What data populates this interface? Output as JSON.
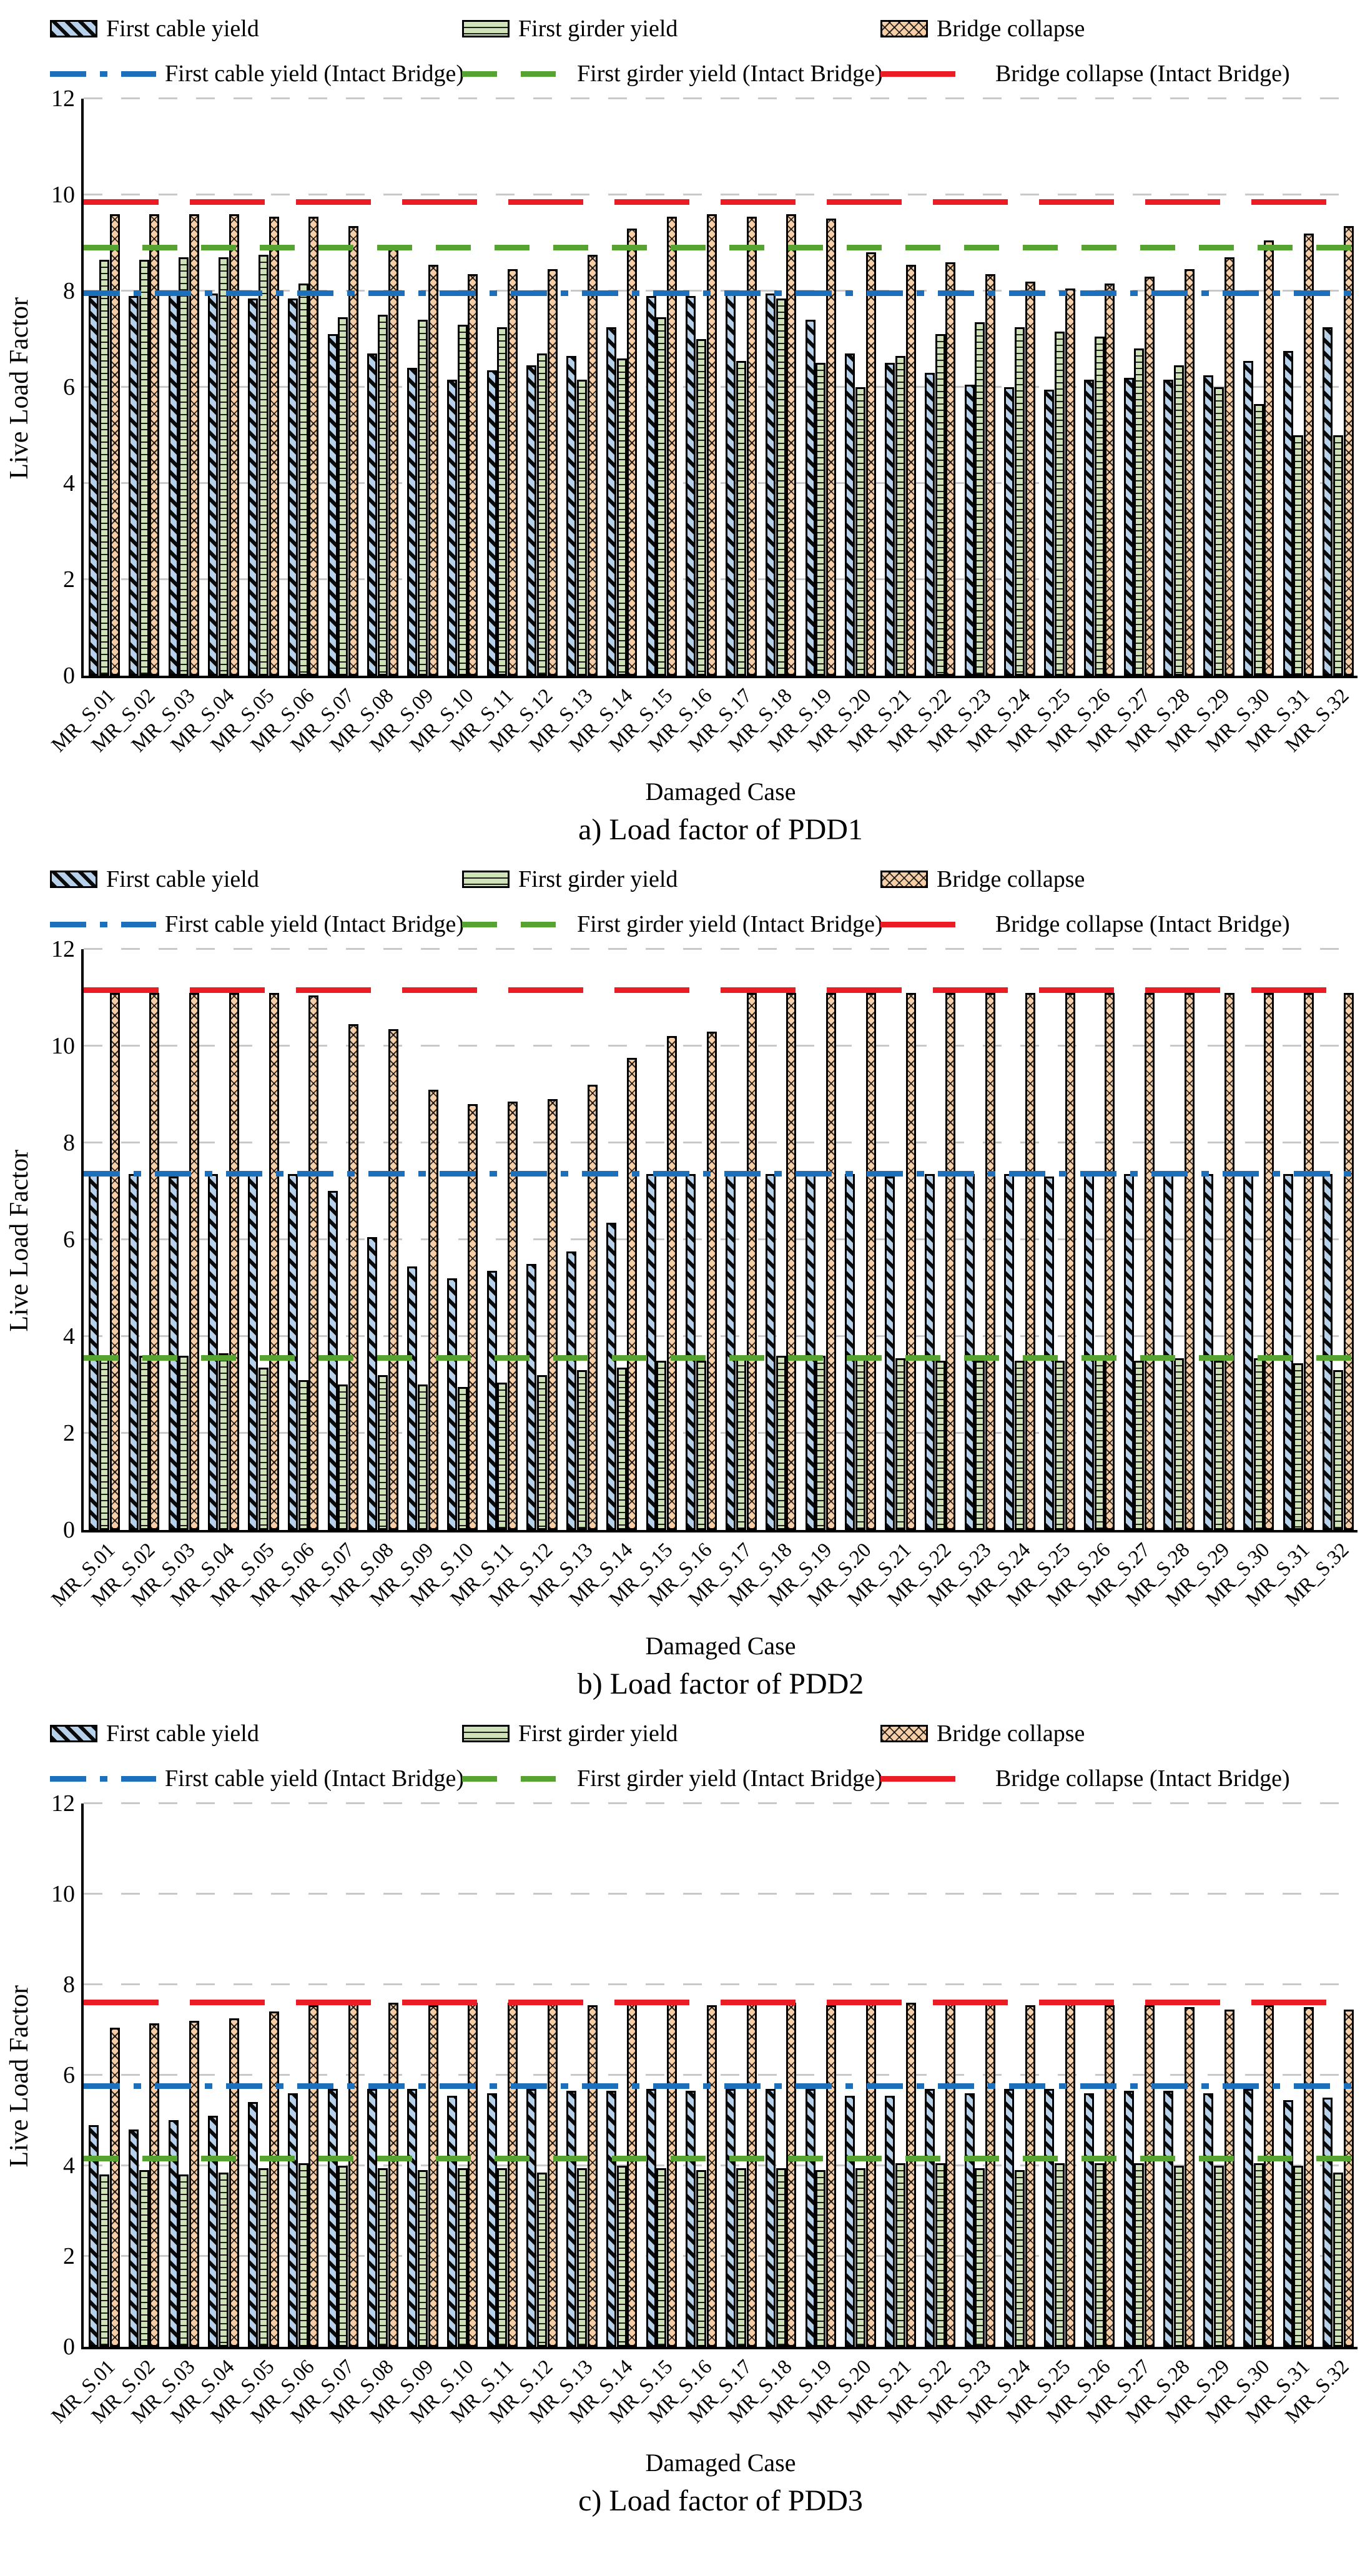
{
  "legend": {
    "bars": [
      {
        "name": "cable",
        "label": "First cable yield"
      },
      {
        "name": "girder",
        "label": "First girder yield"
      },
      {
        "name": "collapse",
        "label": "Bridge collapse"
      }
    ],
    "lines": [
      {
        "name": "cable-intact",
        "label": "First cable yield (Intact Bridge)"
      },
      {
        "name": "girder-intact",
        "label": "First girder yield (Intact Bridge)"
      },
      {
        "name": "collapse-intact",
        "label": "Bridge collapse (Intact Bridge)"
      }
    ]
  },
  "colors": {
    "cable_fill": "#b8d1ea",
    "girder_fill": "#cfe2b8",
    "collapse_fill": "#f6cfa9",
    "cable_intact_line": "#1c6fba",
    "girder_intact_line": "#56a331",
    "collapse_intact_line": "#ec1c24",
    "grid": "#c9c9c9"
  },
  "ylabel": "Live Load Factor",
  "xlabel": "Damaged Case",
  "yticks": [
    0,
    2,
    4,
    6,
    8,
    10,
    12
  ],
  "categories": [
    "MR_S.01",
    "MR_S.02",
    "MR_S.03",
    "MR_S.04",
    "MR_S.05",
    "MR_S.06",
    "MR_S.07",
    "MR_S.08",
    "MR_S.09",
    "MR_S.10",
    "MR_S.11",
    "MR_S.12",
    "MR_S.13",
    "MR_S.14",
    "MR_S.15",
    "MR_S.16",
    "MR_S.17",
    "MR_S.18",
    "MR_S.19",
    "MR_S.20",
    "MR_S.21",
    "MR_S.22",
    "MR_S.23",
    "MR_S.24",
    "MR_S.25",
    "MR_S.26",
    "MR_S.27",
    "MR_S.28",
    "MR_S.29",
    "MR_S.30",
    "MR_S.31",
    "MR_S.32"
  ],
  "chart_data": [
    {
      "type": "bar",
      "title": "a) Load factor of PDD1",
      "xlabel": "Damaged Case",
      "ylabel": "Live Load Factor",
      "ylim": [
        0,
        12
      ],
      "grid": "dashed-horizontal",
      "legend_position": "top",
      "series": [
        {
          "name": "First cable yield",
          "values": [
            7.9,
            7.9,
            7.95,
            7.95,
            7.85,
            7.85,
            7.1,
            6.7,
            6.4,
            6.15,
            6.35,
            6.45,
            6.65,
            7.25,
            7.9,
            7.9,
            7.95,
            7.95,
            7.4,
            6.7,
            6.5,
            6.3,
            6.05,
            6.0,
            5.95,
            6.15,
            6.2,
            6.15,
            6.25,
            6.55,
            6.75,
            7.25
          ]
        },
        {
          "name": "First girder yield",
          "values": [
            8.65,
            8.65,
            8.7,
            8.7,
            8.75,
            8.15,
            7.45,
            7.5,
            7.4,
            7.3,
            7.25,
            6.7,
            6.15,
            6.6,
            7.45,
            7.0,
            6.55,
            7.85,
            6.5,
            6.0,
            6.65,
            7.1,
            7.35,
            7.25,
            7.15,
            7.05,
            6.8,
            6.45,
            6.0,
            5.65,
            5.0,
            5.0
          ]
        },
        {
          "name": "Bridge collapse",
          "values": [
            9.6,
            9.6,
            9.6,
            9.6,
            9.55,
            9.55,
            9.35,
            8.9,
            8.55,
            8.35,
            8.45,
            8.45,
            8.75,
            9.3,
            9.55,
            9.6,
            9.55,
            9.6,
            9.5,
            8.8,
            8.55,
            8.6,
            8.35,
            8.2,
            8.05,
            8.15,
            8.3,
            8.45,
            8.7,
            9.05,
            9.2,
            9.35
          ]
        }
      ],
      "intact_lines": {
        "cable": 7.95,
        "girder": 8.9,
        "collapse": 9.85
      }
    },
    {
      "type": "bar",
      "title": "b) Load factor of PDD2",
      "xlabel": "Damaged Case",
      "ylabel": "Live Load Factor",
      "ylim": [
        0,
        12
      ],
      "grid": "dashed-horizontal",
      "legend_position": "top",
      "series": [
        {
          "name": "First cable yield",
          "values": [
            7.35,
            7.35,
            7.3,
            7.35,
            7.35,
            7.35,
            7.0,
            6.05,
            5.45,
            5.2,
            5.35,
            5.5,
            5.75,
            6.35,
            7.35,
            7.35,
            7.35,
            7.35,
            7.35,
            7.35,
            7.3,
            7.35,
            7.35,
            7.35,
            7.3,
            7.35,
            7.35,
            7.35,
            7.35,
            7.35,
            7.35,
            7.35
          ]
        },
        {
          "name": "First girder yield",
          "values": [
            3.6,
            3.6,
            3.6,
            3.65,
            3.35,
            3.1,
            3.0,
            3.2,
            3.0,
            2.95,
            3.05,
            3.2,
            3.3,
            3.35,
            3.5,
            3.5,
            3.55,
            3.6,
            3.6,
            3.55,
            3.55,
            3.5,
            3.5,
            3.5,
            3.5,
            3.55,
            3.5,
            3.55,
            3.5,
            3.55,
            3.45,
            3.3
          ]
        },
        {
          "name": "Bridge collapse",
          "values": [
            11.1,
            11.1,
            11.1,
            11.1,
            11.1,
            11.05,
            10.45,
            10.35,
            9.1,
            8.8,
            8.85,
            8.9,
            9.2,
            9.75,
            10.2,
            10.3,
            11.1,
            11.1,
            11.1,
            11.1,
            11.1,
            11.1,
            11.1,
            11.1,
            11.1,
            11.1,
            11.1,
            11.1,
            11.1,
            11.1,
            11.1,
            11.1
          ]
        }
      ],
      "intact_lines": {
        "cable": 7.35,
        "girder": 3.55,
        "collapse": 11.15
      }
    },
    {
      "type": "bar",
      "title": "c) Load factor of PDD3",
      "xlabel": "Damaged Case",
      "ylabel": "Live Load Factor",
      "ylim": [
        0,
        12
      ],
      "grid": "dashed-horizontal",
      "legend_position": "top",
      "series": [
        {
          "name": "First cable yield",
          "values": [
            4.9,
            4.8,
            5.0,
            5.1,
            5.4,
            5.6,
            5.7,
            5.7,
            5.7,
            5.55,
            5.6,
            5.7,
            5.65,
            5.65,
            5.7,
            5.65,
            5.7,
            5.7,
            5.7,
            5.55,
            5.55,
            5.7,
            5.6,
            5.7,
            5.7,
            5.6,
            5.65,
            5.65,
            5.6,
            5.7,
            5.45,
            5.5
          ]
        },
        {
          "name": "First girder yield",
          "values": [
            3.8,
            3.9,
            3.8,
            3.85,
            3.95,
            4.05,
            4.0,
            3.95,
            3.9,
            3.95,
            3.95,
            3.85,
            3.95,
            4.0,
            3.95,
            3.9,
            3.95,
            3.95,
            3.9,
            3.95,
            4.05,
            4.05,
            3.95,
            3.9,
            4.05,
            4.05,
            4.05,
            4.0,
            4.0,
            4.05,
            4.0,
            3.85
          ]
        },
        {
          "name": "Bridge collapse",
          "values": [
            7.05,
            7.15,
            7.2,
            7.25,
            7.4,
            7.55,
            7.6,
            7.6,
            7.55,
            7.6,
            7.6,
            7.6,
            7.55,
            7.6,
            7.6,
            7.55,
            7.6,
            7.6,
            7.55,
            7.6,
            7.6,
            7.6,
            7.6,
            7.55,
            7.6,
            7.55,
            7.55,
            7.5,
            7.45,
            7.55,
            7.5,
            7.45
          ]
        }
      ],
      "intact_lines": {
        "cable": 5.75,
        "girder": 4.15,
        "collapse": 7.6
      }
    }
  ]
}
